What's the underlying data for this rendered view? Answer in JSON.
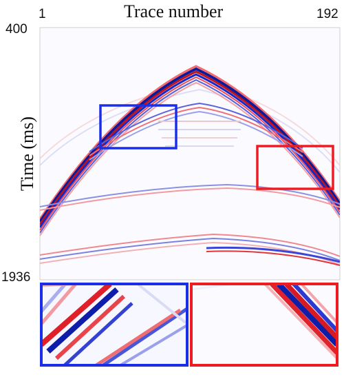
{
  "axes": {
    "x_title": "Trace number",
    "x_min": "1",
    "x_max": "192",
    "y_title": "Time (ms)",
    "y_top": "400",
    "y_bottom": "1936"
  },
  "colors": {
    "positive": "#e0222a",
    "negative": "#1f2ee0",
    "box_left": "#1a2ee8",
    "box_right": "#ee1c22"
  }
}
